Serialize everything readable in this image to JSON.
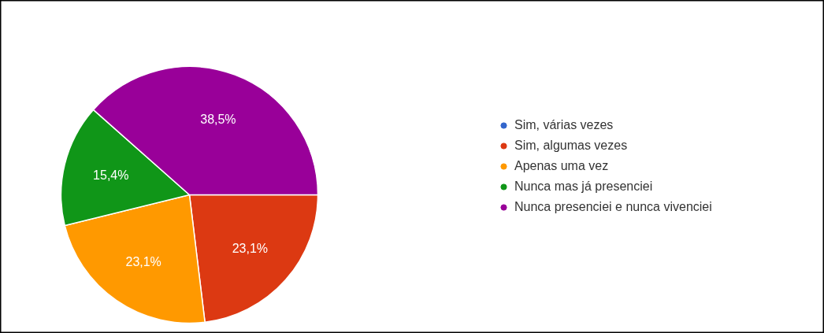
{
  "chart_data": {
    "type": "pie",
    "categories": [
      "Sim, várias vezes",
      "Sim, algumas vezes",
      "Apenas uma vez",
      "Nunca mas já presenciei",
      "Nunca presenciei e nunca vivenciei"
    ],
    "values": [
      0,
      23.1,
      23.1,
      15.4,
      38.5
    ],
    "colors": [
      "#3366cc",
      "#dc3912",
      "#ff9900",
      "#109618",
      "#990099"
    ],
    "value_labels": [
      null,
      "23,1%",
      "23,1%",
      "15,4%",
      "38,5%"
    ],
    "legend": "right"
  }
}
